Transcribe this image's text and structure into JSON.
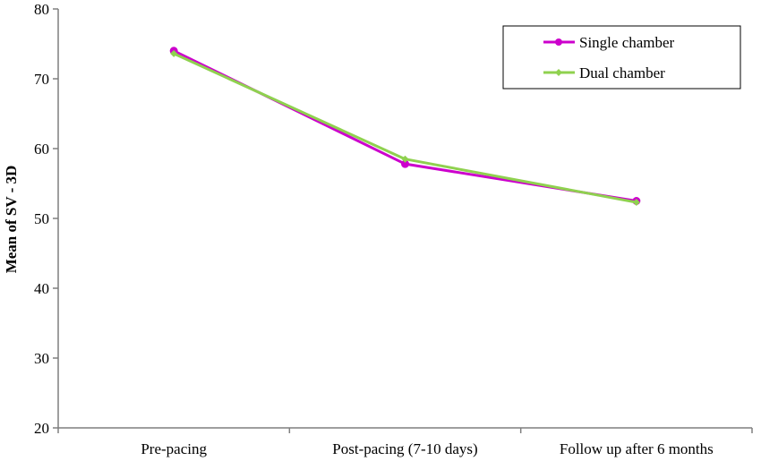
{
  "chart_data": {
    "type": "line",
    "title": "",
    "xlabel": "",
    "ylabel": "Mean of SV - 3D",
    "categories": [
      "Pre-pacing",
      "Post-pacing (7-10 days)",
      "Follow up after 6 months"
    ],
    "ylim": [
      20,
      80
    ],
    "yticks": [
      20,
      30,
      40,
      50,
      60,
      70,
      80
    ],
    "grid": false,
    "legend_position": "top-right",
    "series": [
      {
        "name": "Single chamber",
        "values": [
          74.0,
          57.8,
          52.5
        ],
        "color": "#cc00cc",
        "marker": "circle"
      },
      {
        "name": "Dual chamber",
        "values": [
          73.6,
          58.5,
          52.3
        ],
        "color": "#8fd14f",
        "marker": "diamond"
      }
    ]
  }
}
